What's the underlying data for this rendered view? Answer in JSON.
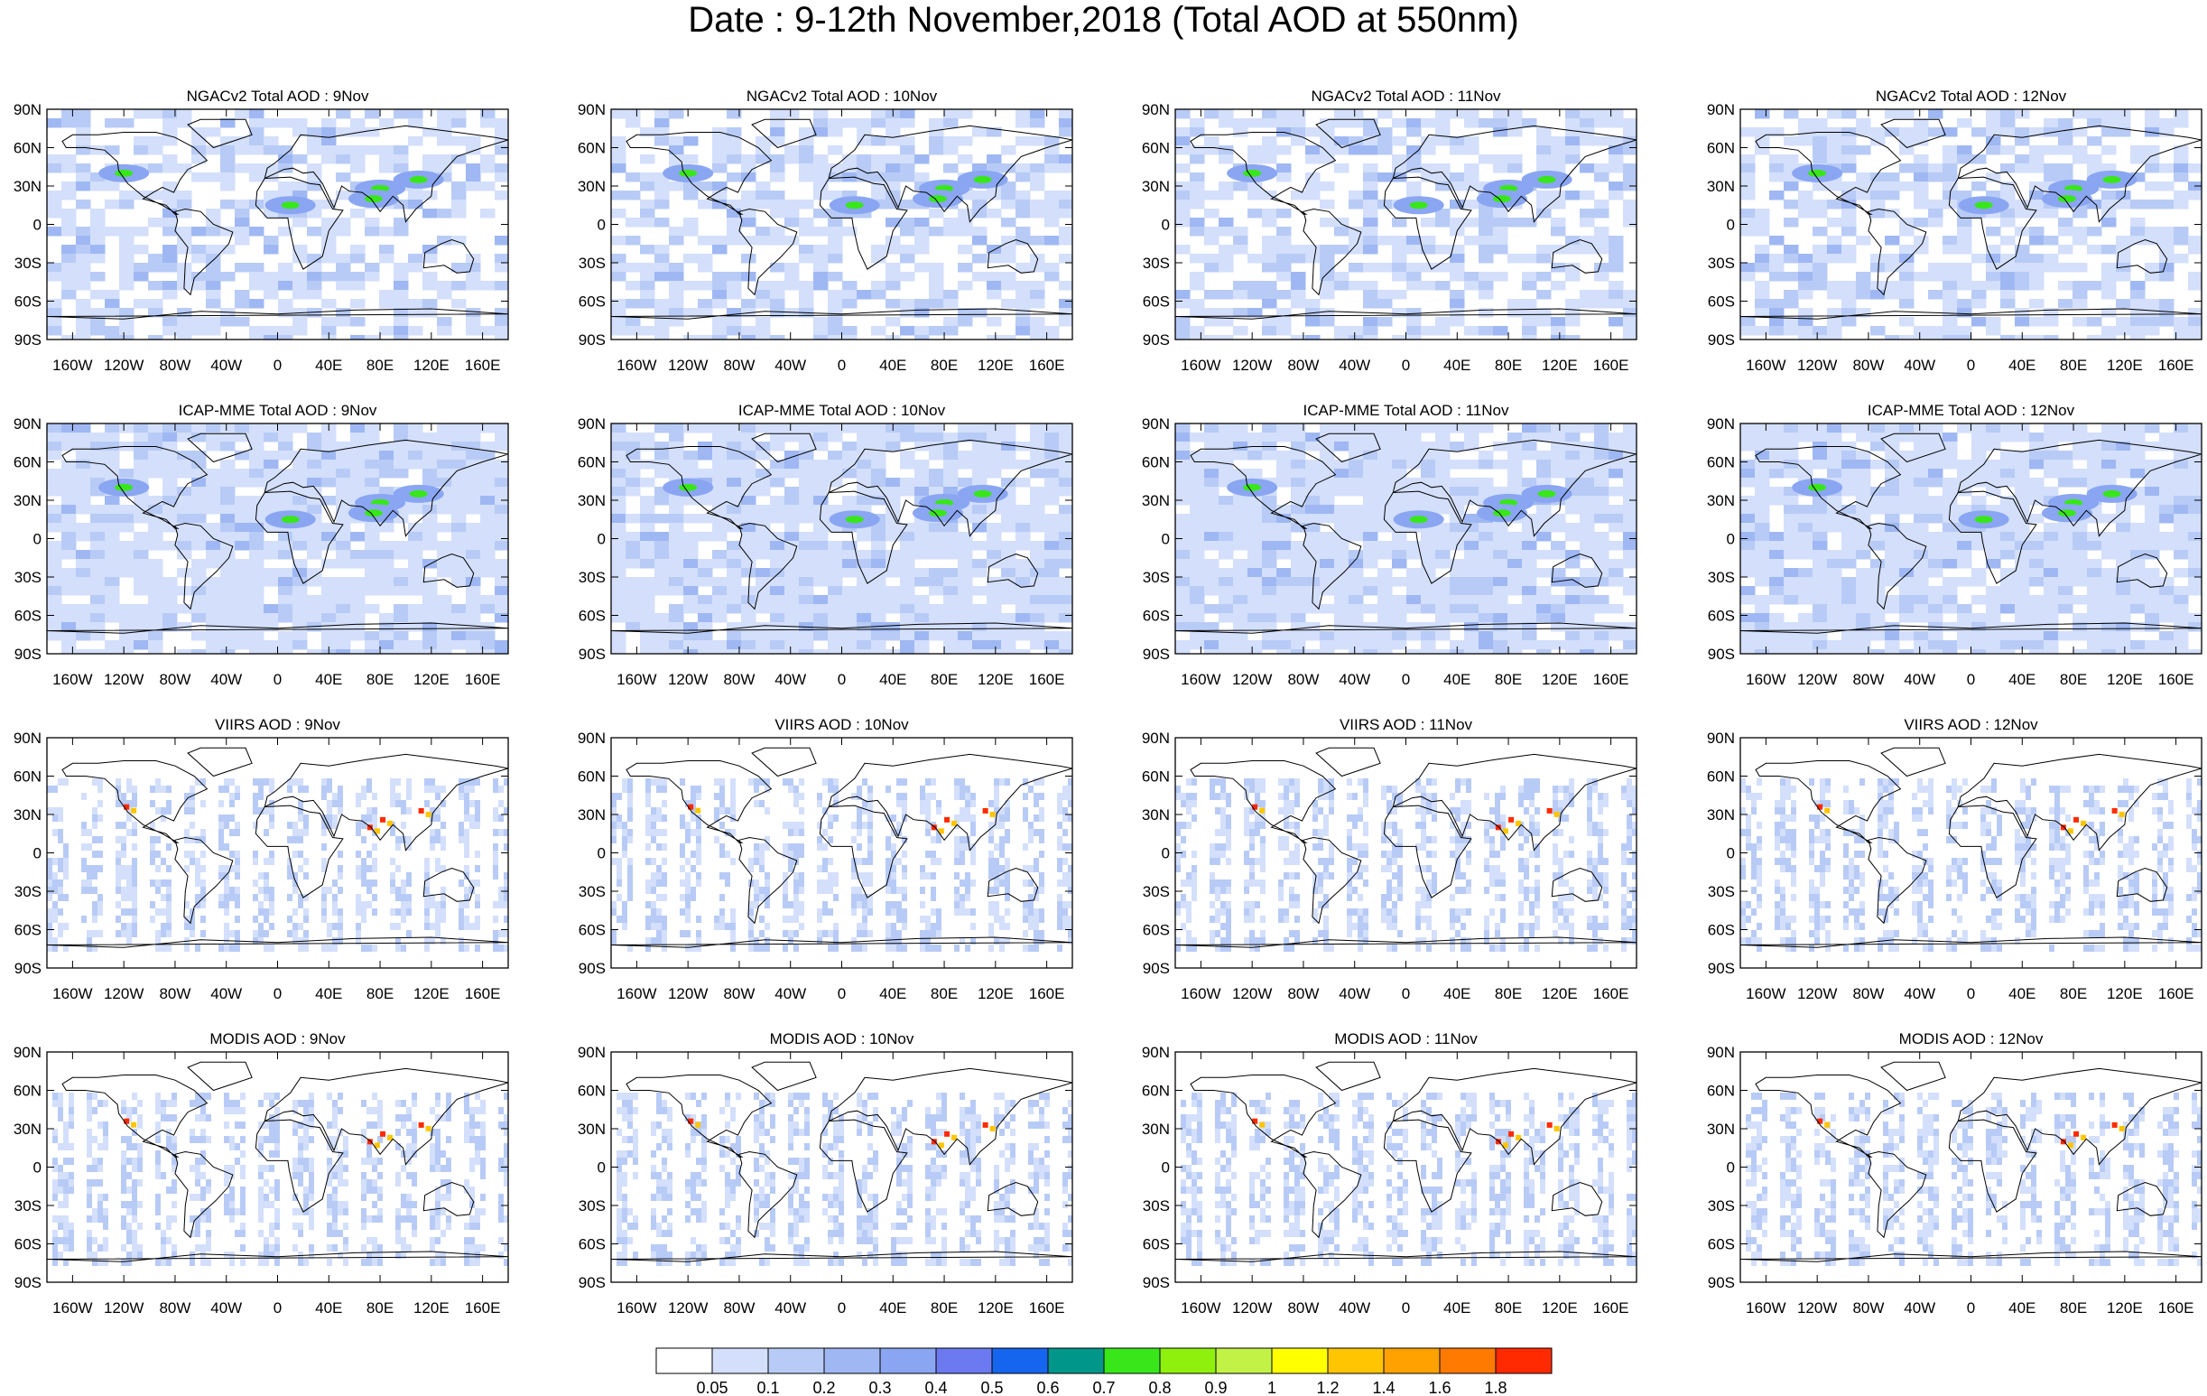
{
  "title": "Date : 9-12th November,2018 (Total AOD at 550nm)",
  "chart_data": {
    "type": "heatmap",
    "title": "Date : 9-12th November,2018 (Total AOD at 550nm)",
    "grid_rows": [
      "NGACv2 Total AOD",
      "ICAP-MME Total AOD",
      "VIIRS AOD",
      "MODIS AOD"
    ],
    "grid_columns": [
      "9Nov",
      "10Nov",
      "11Nov",
      "12Nov"
    ],
    "panels": [
      {
        "title": "NGACv2 Total AOD : 9Nov"
      },
      {
        "title": "NGACv2 Total AOD : 10Nov"
      },
      {
        "title": "NGACv2 Total AOD : 11Nov"
      },
      {
        "title": "NGACv2 Total AOD : 12Nov"
      },
      {
        "title": "ICAP-MME Total AOD : 9Nov"
      },
      {
        "title": "ICAP-MME Total AOD : 10Nov"
      },
      {
        "title": "ICAP-MME Total AOD : 11Nov"
      },
      {
        "title": "ICAP-MME Total AOD : 12Nov"
      },
      {
        "title": "VIIRS AOD : 9Nov"
      },
      {
        "title": "VIIRS AOD : 10Nov"
      },
      {
        "title": "VIIRS AOD : 11Nov"
      },
      {
        "title": "VIIRS AOD : 12Nov"
      },
      {
        "title": "MODIS AOD : 9Nov"
      },
      {
        "title": "MODIS AOD : 10Nov"
      },
      {
        "title": "MODIS AOD : 11Nov"
      },
      {
        "title": "MODIS AOD : 12Nov"
      }
    ],
    "x_ticks": [
      "160W",
      "120W",
      "80W",
      "40W",
      "0",
      "40E",
      "80E",
      "120E",
      "160E"
    ],
    "x_tick_values": [
      -160,
      -120,
      -80,
      -40,
      0,
      40,
      80,
      120,
      160
    ],
    "y_ticks": [
      "90N",
      "60N",
      "30N",
      "0",
      "30S",
      "60S",
      "90S"
    ],
    "y_tick_values": [
      90,
      60,
      30,
      0,
      -30,
      -60,
      -90
    ],
    "xlim": [
      -180,
      180
    ],
    "ylim": [
      -90,
      90
    ],
    "colorbar": {
      "levels": [
        "0.05",
        "0.1",
        "0.2",
        "0.3",
        "0.4",
        "0.5",
        "0.6",
        "0.7",
        "0.8",
        "0.9",
        "1",
        "1.2",
        "1.4",
        "1.6",
        "1.8"
      ],
      "colors": [
        "#ffffff",
        "#d3dffb",
        "#b8cbf6",
        "#9fb8f3",
        "#8aa6f2",
        "#6b7af0",
        "#1565ee",
        "#00968a",
        "#38e61a",
        "#8ef00c",
        "#c3f247",
        "#ffff00",
        "#ffc500",
        "#ffa200",
        "#ff7a00",
        "#ff2a00"
      ]
    }
  }
}
